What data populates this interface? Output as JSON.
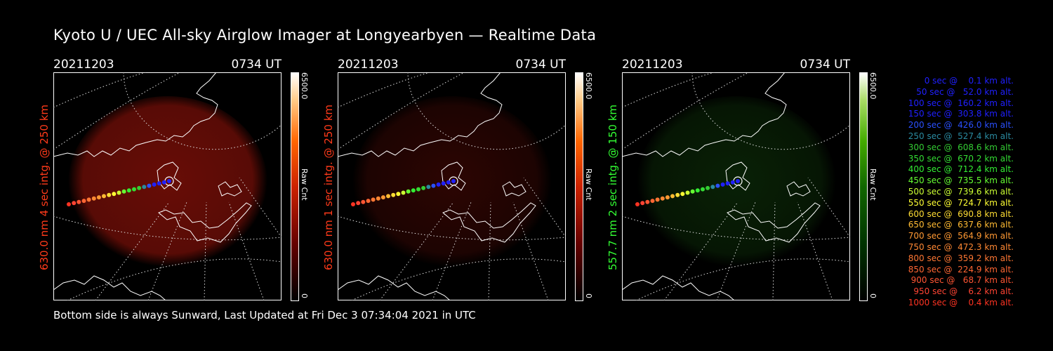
{
  "title": "Kyoto U / UEC All-sky Airglow Imager at Longyearbyen — Realtime Data",
  "footer": "Bottom side is always Sunward, Last Updated at Fri Dec  3 07:34:04 2021 in UTC",
  "colors": {
    "red_panel": "#ff3a1a",
    "green_panel": "#33ff33",
    "legend": [
      "#2020ff",
      "#2020ff",
      "#2020ff",
      "#2020ff",
      "#2a50ff",
      "#2a8aa0",
      "#33cc33",
      "#33dd33",
      "#33ee33",
      "#66ff33",
      "#ccff33",
      "#ffff33",
      "#ffdd33",
      "#ffbb33",
      "#ff9933",
      "#ff8833",
      "#ff7733",
      "#ff6633",
      "#ff5533",
      "#ff4433",
      "#ff3322"
    ]
  },
  "panels": [
    {
      "date": "20211203",
      "time": "0734 UT",
      "ylabel": "630.0 nm 4 sec intg. @ 250 km",
      "cb_max": "6500.0",
      "cb_min": "0",
      "cb_unit": "Raw Cnt",
      "color": "#ff3a1a",
      "tint": "red",
      "brightness": 0.55
    },
    {
      "date": "20211203",
      "time": "0734 UT",
      "ylabel": "630.0 nm 1 sec intg. @ 250 km",
      "cb_max": "6500.0",
      "cb_min": "0",
      "cb_unit": "Raw Cnt",
      "color": "#ff3a1a",
      "tint": "red",
      "brightness": 0.18
    },
    {
      "date": "20211203",
      "time": "0734 UT",
      "ylabel": "557.7 nm 2 sec intg. @ 150 km",
      "cb_max": "6500.0",
      "cb_min": "0",
      "cb_unit": "Raw Cnt",
      "color": "#33ff33",
      "tint": "green",
      "brightness": 0.2
    }
  ],
  "legend": [
    "0 sec @    0.1 km alt.",
    "50 sec @   52.0 km alt.",
    "100 sec @  160.2 km alt.",
    "150 sec @  303.8 km alt.",
    "200 sec @  426.0 km alt.",
    "250 sec @  527.4 km alt.",
    "300 sec @  608.6 km alt.",
    "350 sec @  670.2 km alt.",
    "400 sec @  712.4 km alt.",
    "450 sec @  735.5 km alt.",
    "500 sec @  739.6 km alt.",
    "550 sec @  724.7 km alt.",
    "600 sec @  690.8 km alt.",
    "650 sec @  637.6 km alt.",
    "700 sec @  564.9 km alt.",
    "750 sec @  472.3 km alt.",
    "800 sec @  359.2 km alt.",
    "850 sec @  224.9 km alt.",
    "900 sec @   68.7 km alt.",
    "950 sec @    6.2 km alt.",
    "1000 sec @    0.4 km alt."
  ]
}
